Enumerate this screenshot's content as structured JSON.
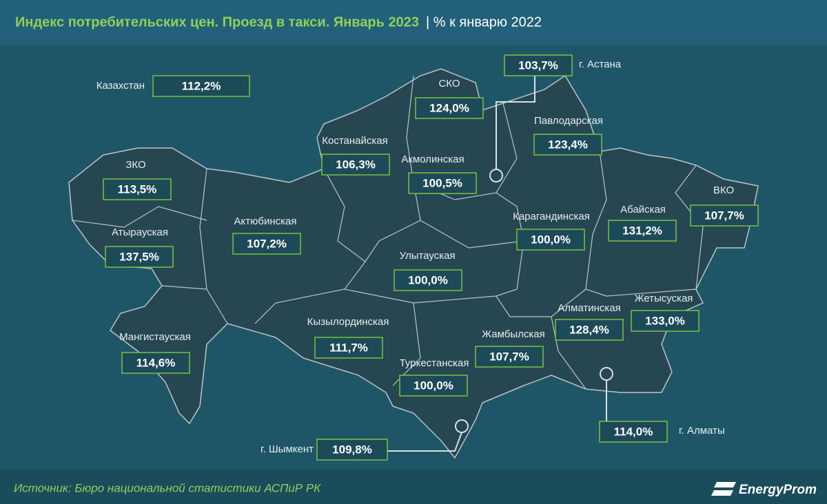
{
  "header": {
    "title": "Индекс потребительских цен. Проезд в такси. Январь 2023",
    "subtitle": "| % к январю 2022"
  },
  "regions": [
    {
      "name": "Казахстан",
      "value": "112,2%"
    },
    {
      "name": "г. Астана",
      "value": "103,7%"
    },
    {
      "name": "СКО",
      "value": "124,0%"
    },
    {
      "name": "Павлодарская",
      "value": "123,4%"
    },
    {
      "name": "Костанайская",
      "value": "106,3%"
    },
    {
      "name": "Акмолинская",
      "value": "100,5%"
    },
    {
      "name": "ЗКО",
      "value": "113,5%"
    },
    {
      "name": "ВКО",
      "value": "107,7%"
    },
    {
      "name": "Абайская",
      "value": "131,2%"
    },
    {
      "name": "Актюбинская",
      "value": "107,2%"
    },
    {
      "name": "Карагандинская",
      "value": "100,0%"
    },
    {
      "name": "Атырауская",
      "value": "137,5%"
    },
    {
      "name": "Улытауская",
      "value": "100,0%"
    },
    {
      "name": "Жетысуская",
      "value": "133,0%"
    },
    {
      "name": "Алматинская",
      "value": "128,4%"
    },
    {
      "name": "Кызылординская",
      "value": "111,7%"
    },
    {
      "name": "Мангистауская",
      "value": "114,6%"
    },
    {
      "name": "Жамбылская",
      "value": "107,7%"
    },
    {
      "name": "Туркестанская",
      "value": "100,0%"
    },
    {
      "name": "г. Алматы",
      "value": "114,0%"
    },
    {
      "name": "г. Шымкент",
      "value": "109,8%"
    }
  ],
  "source": "Источник: Бюро национальной статистики АСПиР РК",
  "logo": "EnergyProm"
}
